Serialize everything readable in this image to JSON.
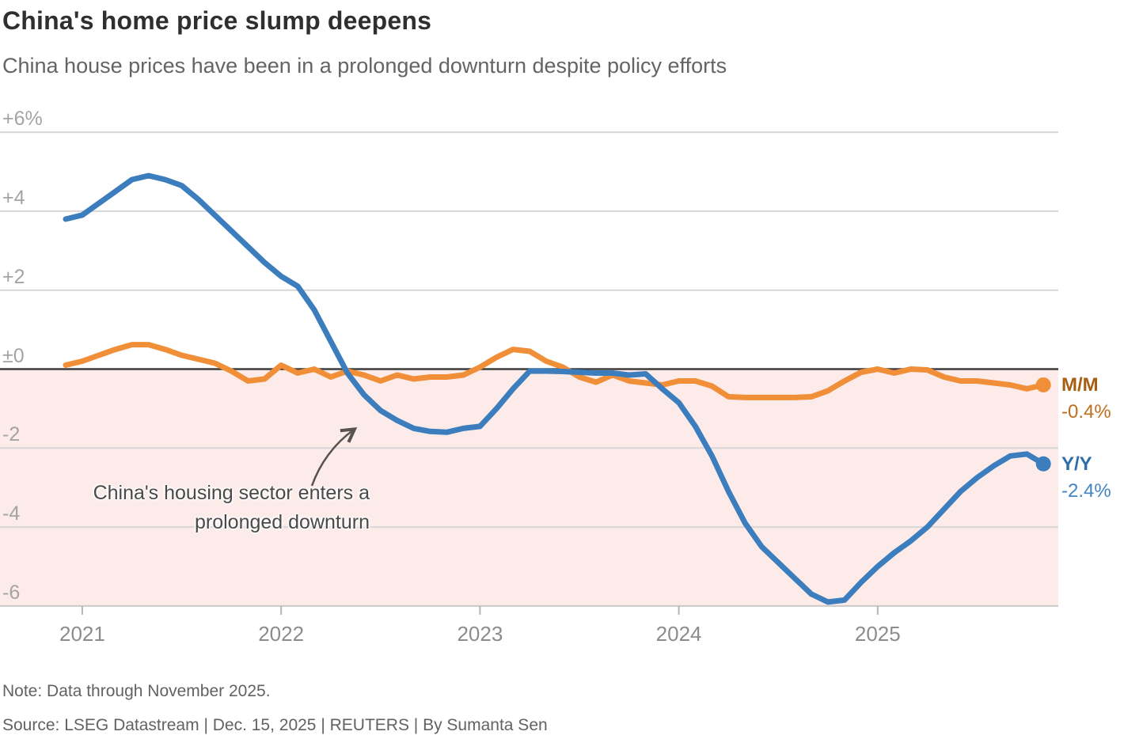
{
  "header": {
    "title": "China's home price slump deepens",
    "subtitle": "China house prices have been in a prolonged downturn despite policy efforts"
  },
  "chart_data": {
    "type": "line",
    "unit": "%",
    "frequency": "monthly",
    "x": [
      "2020-12",
      "2021-01",
      "2021-02",
      "2021-03",
      "2021-04",
      "2021-05",
      "2021-06",
      "2021-07",
      "2021-08",
      "2021-09",
      "2021-10",
      "2021-11",
      "2021-12",
      "2022-01",
      "2022-02",
      "2022-03",
      "2022-04",
      "2022-05",
      "2022-06",
      "2022-07",
      "2022-08",
      "2022-09",
      "2022-10",
      "2022-11",
      "2022-12",
      "2023-01",
      "2023-02",
      "2023-03",
      "2023-04",
      "2023-05",
      "2023-06",
      "2023-07",
      "2023-08",
      "2023-09",
      "2023-10",
      "2023-11",
      "2023-12",
      "2024-01",
      "2024-02",
      "2024-03",
      "2024-04",
      "2024-05",
      "2024-06",
      "2024-07",
      "2024-08",
      "2024-09",
      "2024-10",
      "2024-11",
      "2024-12",
      "2025-01",
      "2025-02",
      "2025-03",
      "2025-04",
      "2025-05",
      "2025-06",
      "2025-07",
      "2025-08",
      "2025-09",
      "2025-10",
      "2025-11"
    ],
    "series": [
      {
        "name": "Y/Y",
        "end_value_label": "-2.4%",
        "color": "#3b7dbd",
        "label_color": "#2e6da6",
        "value_color": "#4285c2",
        "values": [
          3.8,
          3.9,
          4.2,
          4.5,
          4.8,
          4.9,
          4.8,
          4.65,
          4.3,
          3.9,
          3.5,
          3.1,
          2.7,
          2.35,
          2.1,
          1.5,
          0.7,
          -0.1,
          -0.65,
          -1.05,
          -1.3,
          -1.5,
          -1.58,
          -1.6,
          -1.5,
          -1.45,
          -1.0,
          -0.5,
          -0.05,
          -0.05,
          -0.06,
          -0.08,
          -0.1,
          -0.1,
          -0.15,
          -0.12,
          -0.5,
          -0.85,
          -1.45,
          -2.2,
          -3.1,
          -3.9,
          -4.5,
          -4.9,
          -5.3,
          -5.7,
          -5.9,
          -5.85,
          -5.4,
          -5.0,
          -4.65,
          -4.35,
          -4.0,
          -3.55,
          -3.1,
          -2.75,
          -2.45,
          -2.2,
          -2.15,
          -2.4
        ]
      },
      {
        "name": "M/M",
        "end_value_label": "-0.4%",
        "color": "#f08f38",
        "label_color": "#a85e10",
        "value_color": "#bd6f1f",
        "values": [
          0.1,
          0.2,
          0.35,
          0.5,
          0.62,
          0.62,
          0.5,
          0.35,
          0.25,
          0.15,
          -0.05,
          -0.3,
          -0.25,
          0.1,
          -0.1,
          0.0,
          -0.2,
          -0.05,
          -0.15,
          -0.3,
          -0.15,
          -0.25,
          -0.2,
          -0.2,
          -0.15,
          0.05,
          0.3,
          0.5,
          0.45,
          0.2,
          0.05,
          -0.2,
          -0.33,
          -0.15,
          -0.3,
          -0.35,
          -0.4,
          -0.3,
          -0.3,
          -0.43,
          -0.7,
          -0.72,
          -0.72,
          -0.72,
          -0.72,
          -0.7,
          -0.55,
          -0.3,
          -0.08,
          0.0,
          -0.1,
          0.0,
          -0.02,
          -0.2,
          -0.3,
          -0.3,
          -0.35,
          -0.4,
          -0.5,
          -0.4
        ]
      }
    ],
    "yticks": [
      {
        "value": 6,
        "label": "+6%"
      },
      {
        "value": 4,
        "label": "+4"
      },
      {
        "value": 2,
        "label": "+2"
      },
      {
        "value": 0,
        "label": "±0"
      },
      {
        "value": -2,
        "label": "-2"
      },
      {
        "value": -4,
        "label": "-4"
      },
      {
        "value": -6,
        "label": "-6"
      }
    ],
    "xticks": [
      {
        "label": "2021",
        "month_index": 1
      },
      {
        "label": "2022",
        "month_index": 13
      },
      {
        "label": "2023",
        "month_index": 25
      },
      {
        "label": "2024",
        "month_index": 37
      },
      {
        "label": "2025",
        "month_index": 49
      }
    ],
    "ylim": [
      -6,
      6
    ],
    "grid": true,
    "annotation": {
      "line1": "China's housing sector enters a",
      "line2": "prolonged downturn"
    },
    "colors": {
      "negative_region": "#fcebe8",
      "gridline": "#d7d7d7",
      "bottom_axis": "#c9c9c9",
      "zero_line": "#3d3d3d",
      "tick": "#b5b5b5",
      "arrow": "#57524d"
    }
  },
  "footer": {
    "note": "Note: Data through November 2025.",
    "source": "Source: LSEG Datastream | Dec. 15, 2025 | REUTERS | By Sumanta Sen"
  }
}
